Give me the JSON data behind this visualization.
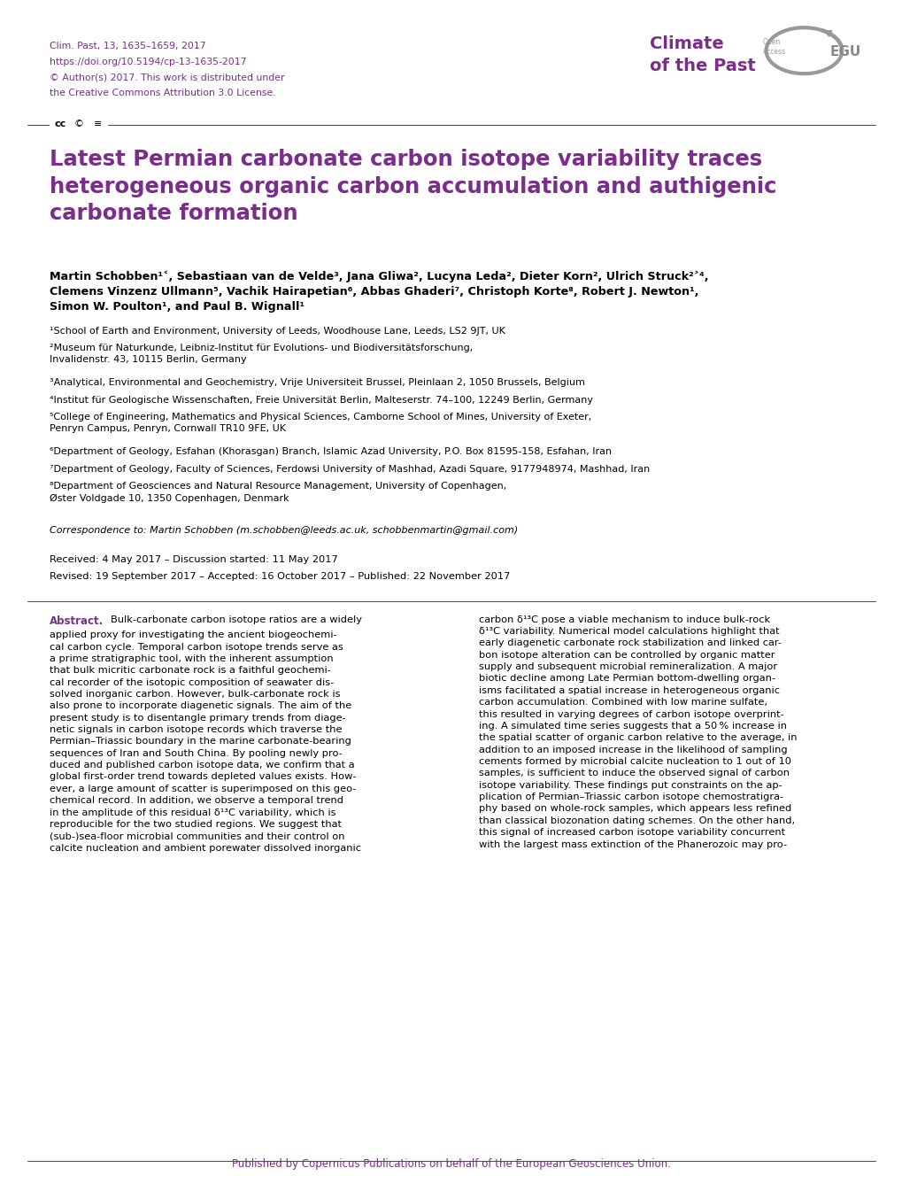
{
  "header_line1": "Clim. Past, 13, 1635–1659, 2017",
  "header_line2": "https://doi.org/10.5194/cp-13-1635-2017",
  "header_line3": "© Author(s) 2017. This work is distributed under",
  "header_line4": "the Creative Commons Attribution 3.0 License.",
  "header_color": "#7B2D8B",
  "journal_name_line1": "Climate",
  "journal_name_line2": "of the Past",
  "journal_color": "#7B2D8B",
  "title": "Latest Permian carbonate carbon isotope variability traces\nheterogeneous organic carbon accumulation and authigenic\ncarbonate formation",
  "title_color": "#7B2D8B",
  "authors": "Martin Schobben¹², Sebastiaan van de Velde³, Jana Gliwa², Lucyna Leda², Dieter Korn², Ulrich Struck²⁴,\nClemens Vinzenz Ullmann⁵, Vachik Hairapetian⁶, Abbas Ghaderi⁷, Christoph Korte⁸, Robert J. Newton¹,\nSimon W. Poulton¹, and Paul B. Wignall¹",
  "affil1": "¹School of Earth and Environment, University of Leeds, Woodhouse Lane, Leeds, LS2 9JT, UK",
  "affil2": "²Museum für Naturkunde, Leibniz-Institut für Evolutions- und Biodiversitätsforschung,\nInvalidenstr. 43, 10115 Berlin, Germany",
  "affil3": "³Analytical, Environmental and Geochemistry, Vrije Universiteit Brussel, Pleinlaan 2, 1050 Brussels, Belgium",
  "affil4": "⁴Institut für Geologische Wissenschaften, Freie Universität Berlin, Malteserstr. 74–100, 12249 Berlin, Germany",
  "affil5": "⁵College of Engineering, Mathematics and Physical Sciences, Camborne School of Mines, University of Exeter,\nPenryn Campus, Penryn, Cornwall TR10 9FE, UK",
  "affil6": "⁶Department of Geology, Esfahan (Khorasgan) Branch, Islamic Azad University, P.O. Box 81595-158, Esfahan, Iran",
  "affil7": "⁷Department of Geology, Faculty of Sciences, Ferdowsi University of Mashhad, Azadi Square, 9177948974, Mashhad, Iran",
  "affil8": "⁸Department of Geosciences and Natural Resource Management, University of Copenhagen,\nØster Voldgade 10, 1350 Copenhagen, Denmark",
  "correspondence": "Correspondence to: Martin Schobben (m.schobben@leeds.ac.uk, schobbenmartin@gmail.com)",
  "received": "Received: 4 May 2017 – Discussion started: 11 May 2017",
  "revised": "Revised: 19 September 2017 – Accepted: 16 October 2017 – Published: 22 November 2017",
  "abstract_label": "Abstract.",
  "abstract_col1": "Bulk-carbonate carbon isotope ratios are a widely\napplied proxy for investigating the ancient biogeochemi-\ncal carbon cycle. Temporal carbon isotope trends serve as\na prime stratigraphic tool, with the inherent assumption\nthat bulk micritic carbonate rock is a faithful geochemi-\ncal recorder of the isotopic composition of seawater dis-\nsolved inorganic carbon. However, bulk-carbonate rock is\nalso prone to incorporate diagenetic signals. The aim of the\npresent study is to disentangle primary trends from diage-\nnetic signals in carbon isotope records which traverse the\nPermian–Triassic boundary in the marine carbonate-bearing\nsequences of Iran and South China. By pooling newly pro-\nduced and published carbon isotope data, we confirm that a\nglobal first-order trend towards depleted values exists. How-\never, a large amount of scatter is superimposed on this geo-\nchemical record. In addition, we observe a temporal trend\nin the amplitude of this residual δ¹³C variability, which is\nreproducible for the two studied regions. We suggest that\n(sub-)sea-floor microbial communities and their control on\ncalcite nucleation and ambient porewater dissolved inorganic",
  "abstract_col2": "carbon δ¹³C pose a viable mechanism to induce bulk-rock\nδ¹³C variability. Numerical model calculations highlight that\nearly diagenetic carbonate rock stabilization and linked car-\nbon isotope alteration can be controlled by organic matter\nsupply and subsequent microbial remineralization. A major\nbiotic decline among Late Permian bottom-dwelling organ-\nisms facilitated a spatial increase in heterogeneous organic\ncarbon accumulation. Combined with low marine sulfate,\nthis resulted in varying degrees of carbon isotope overprint-\ning. A simulated time series suggests that a 50 % increase in\nthe spatial scatter of organic carbon relative to the average, in\naddition to an imposed increase in the likelihood of sampling\ncements formed by microbial calcite nucleation to 1 out of 10\nsamples, is sufficient to induce the observed signal of carbon\nisotope variability. These findings put constraints on the ap-\nplication of Permian–Triassic carbon isotope chemostratigra-\nphy based on whole-rock samples, which appears less refined\nthan classical biozonation dating schemes. On the other hand,\nthis signal of increased carbon isotope variability concurrent\nwith the largest mass extinction of the Phanerozoic may pro-",
  "published_by": "Published by Copernicus Publications on behalf of the European Geosciences Union.",
  "published_color": "#7B2D8B",
  "bg_color": "#FFFFFF",
  "text_color": "#000000",
  "abstract_label_color": "#7B2D8B"
}
